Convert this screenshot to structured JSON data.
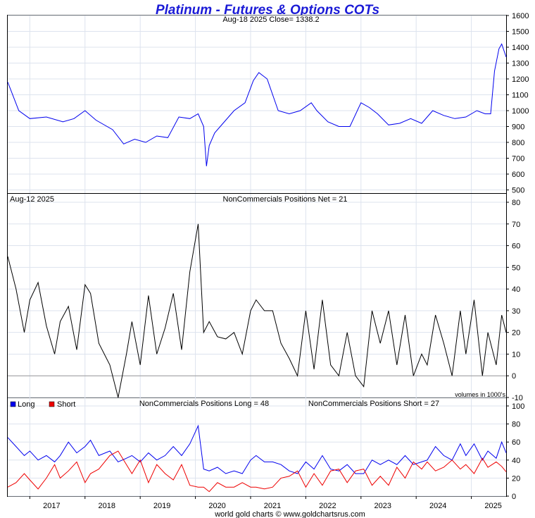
{
  "title": "Platinum - Futures & Options COTs",
  "footer": "world gold charts © www.goldchartsrus.com",
  "colors": {
    "title": "#1a1ad6",
    "price": "#0000ee",
    "net": "#000000",
    "long": "#0000ee",
    "short": "#ee0000",
    "grid": "#dde3ee"
  },
  "chart_data": [
    {
      "type": "line",
      "panel": "price",
      "header": "Aug-18  2025   Close= 1338.2",
      "ylim": [
        480,
        1600
      ],
      "yticks": [
        500,
        600,
        700,
        800,
        900,
        1000,
        1100,
        1200,
        1300,
        1400,
        1500,
        1600
      ],
      "x": [
        2016.6,
        2016.8,
        2017.0,
        2017.3,
        2017.6,
        2017.8,
        2018.0,
        2018.2,
        2018.5,
        2018.7,
        2018.9,
        2019.1,
        2019.3,
        2019.5,
        2019.7,
        2019.9,
        2020.05,
        2020.15,
        2020.2,
        2020.25,
        2020.35,
        2020.5,
        2020.7,
        2020.9,
        2021.05,
        2021.15,
        2021.3,
        2021.5,
        2021.7,
        2021.9,
        2022.1,
        2022.2,
        2022.4,
        2022.6,
        2022.8,
        2023.0,
        2023.15,
        2023.3,
        2023.5,
        2023.7,
        2023.9,
        2024.1,
        2024.3,
        2024.5,
        2024.7,
        2024.9,
        2025.1,
        2025.25,
        2025.35,
        2025.42,
        2025.5,
        2025.55,
        2025.63
      ],
      "series": [
        {
          "values": [
            1180,
            1000,
            950,
            960,
            930,
            950,
            1000,
            940,
            880,
            790,
            820,
            800,
            840,
            830,
            960,
            950,
            980,
            900,
            650,
            780,
            860,
            920,
            1000,
            1050,
            1190,
            1240,
            1200,
            1000,
            980,
            1000,
            1050,
            1000,
            930,
            900,
            900,
            1050,
            1020,
            980,
            910,
            920,
            950,
            920,
            1000,
            970,
            950,
            960,
            1000,
            980,
            980,
            1250,
            1390,
            1420,
            1338
          ]
        }
      ]
    },
    {
      "type": "line",
      "panel": "net",
      "header_date": "Aug-12  2025",
      "header": "NonCommercials Positions Net = 21",
      "note": "volumes in 1000's",
      "ylim": [
        -10,
        80
      ],
      "yticks": [
        -10,
        0,
        10,
        20,
        30,
        40,
        50,
        60,
        70,
        80
      ],
      "x": [
        2016.6,
        2016.75,
        2016.9,
        2017.0,
        2017.15,
        2017.3,
        2017.45,
        2017.55,
        2017.7,
        2017.85,
        2018.0,
        2018.1,
        2018.25,
        2018.45,
        2018.6,
        2018.75,
        2018.85,
        2019.0,
        2019.15,
        2019.3,
        2019.45,
        2019.6,
        2019.75,
        2019.9,
        2020.05,
        2020.15,
        2020.25,
        2020.4,
        2020.55,
        2020.7,
        2020.85,
        2021.0,
        2021.1,
        2021.25,
        2021.4,
        2021.55,
        2021.7,
        2021.85,
        2022.0,
        2022.15,
        2022.3,
        2022.45,
        2022.6,
        2022.75,
        2022.9,
        2023.05,
        2023.2,
        2023.35,
        2023.5,
        2023.65,
        2023.8,
        2023.95,
        2024.1,
        2024.2,
        2024.35,
        2024.5,
        2024.65,
        2024.8,
        2024.9,
        2025.05,
        2025.2,
        2025.3,
        2025.45,
        2025.55,
        2025.63
      ],
      "series": [
        {
          "values": [
            55,
            40,
            20,
            35,
            43,
            23,
            10,
            25,
            32,
            12,
            42,
            38,
            15,
            5,
            -10,
            10,
            25,
            5,
            37,
            10,
            22,
            38,
            12,
            48,
            70,
            20,
            25,
            18,
            17,
            20,
            10,
            30,
            35,
            30,
            30,
            15,
            8,
            0,
            30,
            3,
            35,
            5,
            0,
            20,
            0,
            -5,
            30,
            15,
            30,
            5,
            28,
            0,
            10,
            5,
            28,
            15,
            0,
            30,
            10,
            35,
            0,
            20,
            5,
            28,
            20
          ]
        }
      ]
    },
    {
      "type": "line",
      "panel": "long_short",
      "legend": [
        {
          "name": "Long",
          "color": "#0000ee"
        },
        {
          "name": "Short",
          "color": "#ee0000"
        }
      ],
      "header_long": "NonCommercials Positions Long = 48",
      "header_short": "NonCommercials Positions Short = 27",
      "ylim": [
        0,
        100
      ],
      "yticks": [
        0,
        20,
        40,
        60,
        80,
        100
      ],
      "x": [
        2016.6,
        2016.75,
        2016.9,
        2017.0,
        2017.15,
        2017.3,
        2017.45,
        2017.55,
        2017.7,
        2017.85,
        2018.0,
        2018.1,
        2018.25,
        2018.45,
        2018.6,
        2018.75,
        2018.85,
        2019.0,
        2019.15,
        2019.3,
        2019.45,
        2019.6,
        2019.75,
        2019.9,
        2020.05,
        2020.15,
        2020.25,
        2020.4,
        2020.55,
        2020.7,
        2020.85,
        2021.0,
        2021.1,
        2021.25,
        2021.4,
        2021.55,
        2021.7,
        2021.85,
        2022.0,
        2022.15,
        2022.3,
        2022.45,
        2022.6,
        2022.75,
        2022.9,
        2023.05,
        2023.2,
        2023.35,
        2023.5,
        2023.65,
        2023.8,
        2023.95,
        2024.1,
        2024.2,
        2024.35,
        2024.5,
        2024.65,
        2024.8,
        2024.9,
        2025.05,
        2025.2,
        2025.3,
        2025.45,
        2025.55,
        2025.63
      ],
      "series": [
        {
          "name": "Long",
          "values": [
            65,
            55,
            45,
            50,
            40,
            45,
            38,
            45,
            60,
            48,
            55,
            62,
            45,
            50,
            38,
            42,
            45,
            38,
            48,
            40,
            45,
            55,
            45,
            58,
            78,
            30,
            28,
            32,
            25,
            28,
            25,
            40,
            45,
            38,
            38,
            35,
            28,
            25,
            38,
            30,
            45,
            30,
            28,
            35,
            25,
            25,
            40,
            35,
            40,
            35,
            45,
            35,
            38,
            40,
            55,
            45,
            40,
            58,
            45,
            58,
            40,
            50,
            42,
            60,
            48
          ]
        },
        {
          "name": "Short",
          "values": [
            10,
            15,
            25,
            18,
            8,
            20,
            35,
            20,
            28,
            38,
            15,
            25,
            30,
            45,
            50,
            35,
            25,
            40,
            15,
            35,
            25,
            18,
            35,
            12,
            10,
            10,
            5,
            15,
            10,
            10,
            15,
            10,
            10,
            8,
            10,
            20,
            22,
            28,
            10,
            25,
            12,
            28,
            30,
            15,
            28,
            30,
            12,
            22,
            12,
            32,
            20,
            38,
            30,
            38,
            28,
            32,
            40,
            30,
            35,
            25,
            42,
            32,
            38,
            33,
            27
          ]
        }
      ]
    }
  ],
  "x_axis": {
    "labels": [
      "2017",
      "2018",
      "2019",
      "2020",
      "2021",
      "2022",
      "2023",
      "2024",
      "2025"
    ],
    "values": [
      2017,
      2018,
      2019,
      2020,
      2021,
      2022,
      2023,
      2024,
      2025
    ],
    "range": [
      2016.6,
      2025.63
    ]
  }
}
